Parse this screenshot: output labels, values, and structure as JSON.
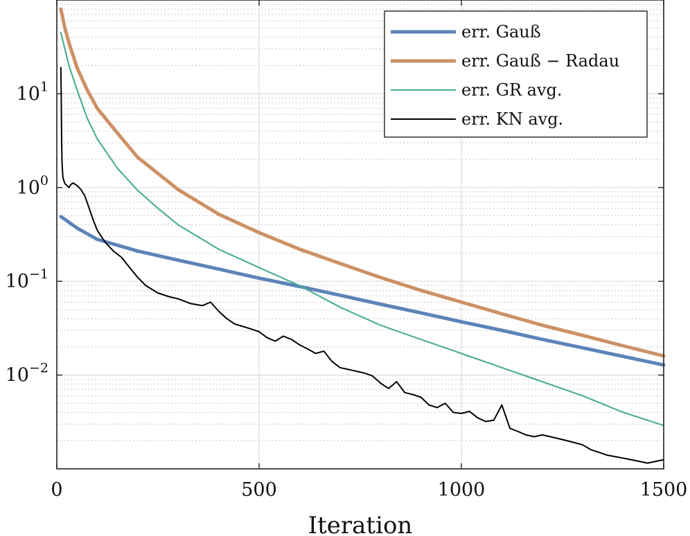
{
  "chart_data": {
    "type": "line",
    "title": "",
    "xlabel": "Iteration",
    "ylabel": "",
    "xlim": [
      0,
      1500
    ],
    "ylim": [
      0.001,
      100
    ],
    "yscale": "log",
    "xticks": [
      0,
      500,
      1000,
      1500
    ],
    "xtick_labels": [
      "0",
      "500",
      "1000",
      "1500"
    ],
    "yticks": [
      0.01,
      0.1,
      1,
      10
    ],
    "ytick_labels": [
      {
        "base": "10",
        "exp": "−2"
      },
      {
        "base": "10",
        "exp": "−1"
      },
      {
        "base": "10",
        "exp": "0"
      },
      {
        "base": "10",
        "exp": "1"
      }
    ],
    "grid": true,
    "legend_position": "top-right",
    "series": [
      {
        "name": "err. Gauß",
        "color": "#5b84b8",
        "width": 5,
        "x": [
          10,
          50,
          100,
          200,
          300,
          400,
          500,
          600,
          700,
          800,
          900,
          1000,
          1100,
          1200,
          1300,
          1400,
          1500
        ],
        "y": [
          0.49,
          0.37,
          0.28,
          0.21,
          0.168,
          0.135,
          0.108,
          0.088,
          0.071,
          0.057,
          0.046,
          0.037,
          0.03,
          0.024,
          0.0195,
          0.0158,
          0.0128
        ]
      },
      {
        "name": "err. Gauß − Radau",
        "color": "#cc9165",
        "width": 5,
        "x": [
          10,
          20,
          30,
          50,
          75,
          100,
          150,
          200,
          300,
          400,
          500,
          600,
          700,
          800,
          900,
          1000,
          1100,
          1200,
          1300,
          1400,
          1500
        ],
        "y": [
          80,
          50,
          35,
          19,
          11,
          7,
          3.8,
          2.1,
          0.95,
          0.52,
          0.33,
          0.22,
          0.155,
          0.11,
          0.08,
          0.06,
          0.045,
          0.034,
          0.0265,
          0.0205,
          0.016
        ]
      },
      {
        "name": "err. GR avg.",
        "color": "#4fae97",
        "width": 2.2,
        "x": [
          10,
          20,
          30,
          50,
          75,
          100,
          150,
          200,
          250,
          300,
          400,
          500,
          600,
          700,
          800,
          900,
          1000,
          1100,
          1200,
          1300,
          1400,
          1500
        ],
        "y": [
          45,
          30,
          20,
          11,
          5.5,
          3.3,
          1.6,
          0.93,
          0.6,
          0.4,
          0.22,
          0.14,
          0.09,
          0.053,
          0.034,
          0.024,
          0.017,
          0.012,
          0.0085,
          0.006,
          0.004,
          0.0029
        ]
      },
      {
        "name": "err. KN avg.",
        "color": "#000000",
        "width": 2,
        "x": [
          10,
          11,
          12,
          13,
          15,
          17,
          20,
          25,
          30,
          35,
          40,
          50,
          60,
          70,
          80,
          90,
          100,
          110,
          120,
          140,
          160,
          180,
          200,
          220,
          250,
          280,
          300,
          330,
          360,
          380,
          400,
          420,
          440,
          460,
          480,
          500,
          520,
          540,
          560,
          580,
          600,
          620,
          640,
          660,
          680,
          700,
          720,
          740,
          760,
          780,
          800,
          820,
          840,
          860,
          880,
          900,
          920,
          940,
          960,
          980,
          1000,
          1020,
          1040,
          1060,
          1080,
          1100,
          1120,
          1140,
          1160,
          1180,
          1200,
          1220,
          1240,
          1260,
          1280,
          1300,
          1320,
          1340,
          1360,
          1380,
          1400,
          1420,
          1440,
          1460,
          1480,
          1500
        ],
        "y": [
          19,
          9,
          3,
          1.8,
          1.3,
          1.2,
          1.1,
          1.05,
          1.0,
          1.08,
          1.12,
          1.05,
          0.95,
          0.8,
          0.6,
          0.45,
          0.35,
          0.3,
          0.26,
          0.21,
          0.18,
          0.14,
          0.11,
          0.09,
          0.075,
          0.068,
          0.065,
          0.058,
          0.055,
          0.06,
          0.048,
          0.04,
          0.035,
          0.033,
          0.031,
          0.029,
          0.025,
          0.023,
          0.026,
          0.024,
          0.021,
          0.019,
          0.017,
          0.018,
          0.014,
          0.012,
          0.0115,
          0.011,
          0.0105,
          0.0098,
          0.0082,
          0.0072,
          0.0085,
          0.0065,
          0.0062,
          0.0058,
          0.0048,
          0.0045,
          0.005,
          0.004,
          0.0039,
          0.0041,
          0.0035,
          0.0032,
          0.0033,
          0.0048,
          0.0027,
          0.0025,
          0.0023,
          0.0022,
          0.0023,
          0.0022,
          0.0021,
          0.002,
          0.0019,
          0.0018,
          0.0016,
          0.0015,
          0.0014,
          0.00135,
          0.0013,
          0.00125,
          0.0012,
          0.00115,
          0.0012,
          0.00125
        ]
      }
    ]
  }
}
